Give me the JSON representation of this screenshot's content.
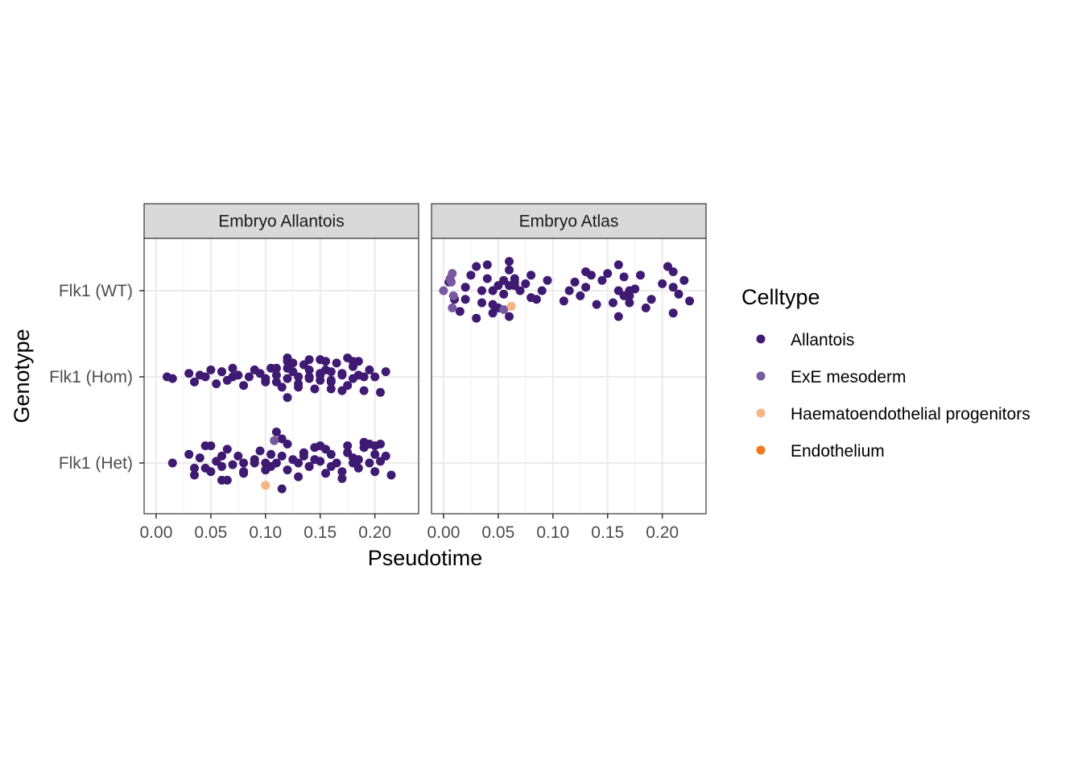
{
  "chart_data": {
    "type": "scatter",
    "xlabel": "Pseudotime",
    "ylabel": "Genotype",
    "xlim": [
      -0.011,
      0.24
    ],
    "x_ticks": [
      "0.00",
      "0.05",
      "0.10",
      "0.15",
      "0.20"
    ],
    "x_tick_values": [
      0.0,
      0.05,
      0.1,
      0.15,
      0.2
    ],
    "y_categories": [
      "Flk1 (WT)",
      "Flk1 (Hom)",
      "Flk1 (Het)"
    ],
    "grid": true,
    "legend": {
      "title": "Celltype",
      "placement": "right",
      "entries": [
        {
          "label": "Allantois",
          "color": "#3f1a72"
        },
        {
          "label": "ExE mesoderm",
          "color": "#7858a0"
        },
        {
          "label": "Haematoendothelial progenitors",
          "color": "#f8b483"
        },
        {
          "label": "Endothelium",
          "color": "#f07818"
        }
      ]
    },
    "panels": [
      {
        "title": "Embryo Allantois",
        "groups": [
          {
            "genotype": "Flk1 (Hom)",
            "celltype": "Allantois",
            "x": [
              0.01,
              0.015,
              0.03,
              0.035,
              0.04,
              0.045,
              0.05,
              0.055,
              0.06,
              0.065,
              0.07,
              0.075,
              0.08,
              0.085,
              0.095,
              0.1,
              0.105,
              0.11,
              0.115,
              0.12,
              0.125,
              0.13,
              0.135,
              0.14,
              0.145,
              0.15,
              0.155,
              0.16,
              0.165,
              0.17,
              0.175,
              0.18,
              0.185,
              0.19,
              0.195,
              0.2,
              0.205,
              0.21,
              0.12,
              0.13,
              0.14,
              0.15,
              0.16,
              0.17,
              0.18,
              0.1,
              0.11,
              0.12,
              0.13,
              0.14,
              0.15,
              0.16,
              0.17,
              0.18,
              0.19,
              0.06,
              0.07,
              0.09,
              0.12,
              0.16,
              0.11,
              0.12,
              0.125,
              0.14,
              0.15,
              0.155,
              0.175,
              0.185
            ],
            "y": [
              0.0,
              -0.02,
              0.04,
              -0.06,
              0.02,
              0.0,
              0.08,
              -0.08,
              0.06,
              -0.04,
              0.1,
              0.02,
              -0.1,
              0.0,
              0.04,
              -0.06,
              0.1,
              0.02,
              -0.12,
              0.18,
              0.06,
              -0.08,
              0.14,
              0.0,
              -0.14,
              0.2,
              0.08,
              -0.06,
              0.16,
              0.04,
              -0.1,
              0.12,
              0.02,
              -0.16,
              0.08,
              0.0,
              -0.18,
              0.06,
              -0.02,
              0.0,
              -0.02,
              0.04,
              -0.04,
              0.02,
              -0.02,
              -0.02,
              -0.06,
              0.1,
              -0.12,
              0.08,
              -0.04,
              0.06,
              -0.16,
              0.18,
              0.0,
              0.06,
              0.0,
              0.08,
              -0.24,
              -0.14,
              0.1,
              0.22,
              0.16,
              0.2,
              0.02,
              0.18,
              0.22,
              0.18
            ]
          },
          {
            "genotype": "Flk1 (Het)",
            "celltype": "Allantois",
            "x": [
              0.015,
              0.03,
              0.035,
              0.04,
              0.045,
              0.05,
              0.055,
              0.06,
              0.065,
              0.07,
              0.075,
              0.08,
              0.09,
              0.095,
              0.1,
              0.105,
              0.11,
              0.115,
              0.12,
              0.125,
              0.13,
              0.135,
              0.14,
              0.145,
              0.15,
              0.155,
              0.16,
              0.165,
              0.17,
              0.175,
              0.18,
              0.185,
              0.19,
              0.195,
              0.2,
              0.205,
              0.21,
              0.215,
              0.05,
              0.06,
              0.11,
              0.12,
              0.13,
              0.14,
              0.16,
              0.18,
              0.19,
              0.2,
              0.045,
              0.08,
              0.115,
              0.1,
              0.135,
              0.155,
              0.175,
              0.195,
              0.06,
              0.1,
              0.115,
              0.15,
              0.17,
              0.2,
              0.035,
              0.065,
              0.09,
              0.105,
              0.145,
              0.185,
              0.205,
              0.08
            ],
            "y": [
              0.0,
              0.1,
              -0.14,
              0.06,
              -0.06,
              0.2,
              0.02,
              -0.2,
              0.16,
              -0.02,
              0.08,
              -0.12,
              0.0,
              0.14,
              -0.08,
              0.1,
              0.0,
              -0.3,
              0.22,
              0.04,
              -0.16,
              0.12,
              -0.04,
              0.18,
              0.02,
              -0.12,
              0.1,
              0.0,
              -0.18,
              0.2,
              0.06,
              -0.06,
              0.24,
              0.0,
              -0.1,
              0.22,
              0.08,
              -0.14,
              -0.1,
              -0.04,
              0.36,
              -0.08,
              0.0,
              -0.04,
              -0.04,
              0.0,
              0.18,
              0.2,
              0.2,
              -0.1,
              0.28,
              -0.08,
              0.08,
              0.16,
              0.12,
              0.22,
              0.08,
              0.0,
              0.08,
              0.2,
              -0.1,
              0.1,
              -0.06,
              -0.2,
              0.04,
              -0.04,
              0.04,
              0.04,
              0.02,
              0.0
            ]
          },
          {
            "genotype": "Flk1 (Het)",
            "celltype": "ExE mesoderm",
            "x": [
              0.108
            ],
            "y": [
              0.26
            ]
          },
          {
            "genotype": "Flk1 (Het)",
            "celltype": "Haematoendothelial progenitors",
            "x": [
              0.1
            ],
            "y": [
              -0.26
            ]
          }
        ]
      },
      {
        "title": "Embryo Atlas",
        "groups": [
          {
            "genotype": "Flk1 (WT)",
            "celltype": "Allantois",
            "x": [
              0.005,
              0.01,
              0.015,
              0.02,
              0.025,
              0.03,
              0.035,
              0.04,
              0.045,
              0.05,
              0.055,
              0.06,
              0.065,
              0.07,
              0.075,
              0.08,
              0.085,
              0.09,
              0.095,
              0.11,
              0.115,
              0.12,
              0.125,
              0.13,
              0.135,
              0.14,
              0.145,
              0.15,
              0.155,
              0.16,
              0.165,
              0.17,
              0.175,
              0.18,
              0.185,
              0.19,
              0.2,
              0.205,
              0.21,
              0.215,
              0.22,
              0.225,
              0.035,
              0.045,
              0.055,
              0.06,
              0.065,
              0.03,
              0.04,
              0.05,
              0.065,
              0.16,
              0.17,
              0.21,
              0.02,
              0.045,
              0.06,
              0.16,
              0.21,
              0.06,
              0.13,
              0.165,
              0.17,
              0.08
            ],
            "y": [
              0.1,
              -0.1,
              -0.24,
              0.04,
              0.18,
              0.28,
              -0.14,
              0.14,
              -0.26,
              0.06,
              -0.04,
              0.34,
              0.14,
              0.0,
              0.08,
              0.18,
              -0.1,
              0.0,
              0.12,
              -0.12,
              0.0,
              0.1,
              -0.06,
              0.04,
              0.18,
              -0.16,
              0.12,
              0.2,
              -0.14,
              0.3,
              0.16,
              -0.06,
              0.02,
              0.18,
              -0.2,
              -0.1,
              0.08,
              0.28,
              0.22,
              -0.04,
              0.12,
              -0.12,
              0.0,
              -0.16,
              0.12,
              0.24,
              0.06,
              -0.32,
              0.3,
              -0.2,
              0.1,
              0.0,
              -0.14,
              -0.26,
              -0.1,
              0.0,
              0.06,
              -0.3,
              0.04,
              -0.3,
              0.22,
              -0.06,
              0.0,
              -0.08
            ]
          },
          {
            "genotype": "Flk1 (WT)",
            "celltype": "ExE mesoderm",
            "x": [
              0.0,
              0.006,
              0.008,
              0.009,
              0.008,
              0.007,
              0.055
            ],
            "y": [
              0.0,
              0.14,
              0.2,
              -0.06,
              -0.2,
              0.1,
              -0.22
            ]
          },
          {
            "genotype": "Flk1 (WT)",
            "celltype": "Haematoendothelial progenitors",
            "x": [
              0.062
            ],
            "y": [
              -0.18
            ]
          }
        ]
      }
    ]
  }
}
